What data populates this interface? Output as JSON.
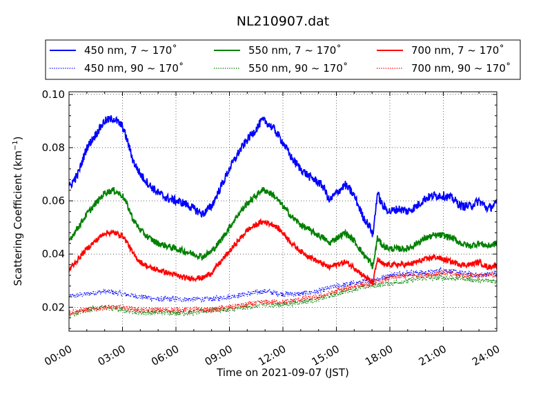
{
  "chart_data": {
    "type": "line",
    "title": "NL210907.dat",
    "xlabel": "Time on 2021-09-07 (JST)",
    "ylabel": "Scattering Coefficient (km",
    "ylabel_sup": "−1",
    "ylabel_close": ")",
    "xlim": [
      0,
      24
    ],
    "ylim": [
      0.011,
      0.101
    ],
    "x_ticks": [
      0,
      3,
      6,
      9,
      12,
      15,
      18,
      21,
      24
    ],
    "x_tick_labels": [
      "00:00",
      "03:00",
      "06:00",
      "09:00",
      "12:00",
      "15:00",
      "18:00",
      "21:00",
      "24:00"
    ],
    "y_ticks": [
      0.02,
      0.04,
      0.06,
      0.08,
      0.1
    ],
    "y_tick_labels": [
      "0.02",
      "0.04",
      "0.06",
      "0.08",
      "0.10"
    ],
    "grid": true,
    "legend_position": "top, above plot, 3 columns",
    "series": [
      {
        "name": "450 nm, 7 ~ 170˚",
        "color": "#0000ff",
        "style": "solid",
        "noise": 0.0016,
        "x": [
          0,
          0.5,
          1,
          1.5,
          2,
          2.5,
          3,
          3.3,
          3.6,
          4,
          4.5,
          5,
          5.5,
          6,
          6.5,
          7,
          7.5,
          8,
          8.5,
          9,
          9.5,
          10,
          10.5,
          10.8,
          11,
          11.5,
          12,
          12.5,
          13,
          13.5,
          14,
          14.3,
          14.6,
          15,
          15.5,
          16,
          16.5,
          16.9,
          17.05,
          17.3,
          17.6,
          18,
          18.5,
          19,
          19.5,
          20,
          20.5,
          21,
          21.5,
          22,
          22.5,
          23,
          23.5,
          24
        ],
        "y": [
          0.065,
          0.07,
          0.08,
          0.085,
          0.09,
          0.091,
          0.088,
          0.082,
          0.075,
          0.07,
          0.066,
          0.063,
          0.061,
          0.06,
          0.059,
          0.057,
          0.055,
          0.058,
          0.065,
          0.072,
          0.078,
          0.083,
          0.087,
          0.09,
          0.09,
          0.087,
          0.082,
          0.076,
          0.072,
          0.069,
          0.067,
          0.065,
          0.06,
          0.063,
          0.066,
          0.062,
          0.054,
          0.05,
          0.047,
          0.063,
          0.058,
          0.056,
          0.057,
          0.056,
          0.058,
          0.061,
          0.062,
          0.062,
          0.061,
          0.058,
          0.058,
          0.06,
          0.057,
          0.059
        ]
      },
      {
        "name": "450 nm, 90 ~ 170˚",
        "color": "#0000ff",
        "style": "dotted",
        "noise": 0.001,
        "x": [
          0,
          1,
          2,
          3,
          4,
          5,
          6,
          7,
          8,
          9,
          10,
          11,
          12,
          13,
          14,
          15,
          16,
          17,
          18,
          19,
          20,
          21,
          22,
          23,
          24
        ],
        "y": [
          0.024,
          0.025,
          0.026,
          0.025,
          0.024,
          0.023,
          0.023,
          0.023,
          0.023,
          0.024,
          0.025,
          0.026,
          0.025,
          0.025,
          0.026,
          0.028,
          0.029,
          0.03,
          0.032,
          0.033,
          0.033,
          0.034,
          0.033,
          0.032,
          0.033
        ]
      },
      {
        "name": "550 nm, 7 ~ 170˚",
        "color": "#008000",
        "style": "solid",
        "noise": 0.0012,
        "x": [
          0,
          0.5,
          1,
          1.5,
          2,
          2.5,
          3,
          3.3,
          3.6,
          4,
          4.5,
          5,
          5.5,
          6,
          6.5,
          7,
          7.5,
          8,
          8.5,
          9,
          9.5,
          10,
          10.5,
          10.8,
          11,
          11.5,
          12,
          12.5,
          13,
          13.5,
          14,
          14.3,
          14.6,
          15,
          15.5,
          16,
          16.5,
          16.9,
          17.05,
          17.3,
          17.6,
          18,
          18.5,
          19,
          19.5,
          20,
          20.5,
          21,
          21.5,
          22,
          22.5,
          23,
          23.5,
          24
        ],
        "y": [
          0.045,
          0.05,
          0.055,
          0.059,
          0.063,
          0.064,
          0.062,
          0.058,
          0.053,
          0.049,
          0.046,
          0.044,
          0.043,
          0.042,
          0.041,
          0.04,
          0.039,
          0.041,
          0.045,
          0.05,
          0.055,
          0.059,
          0.062,
          0.064,
          0.064,
          0.062,
          0.058,
          0.054,
          0.051,
          0.049,
          0.047,
          0.046,
          0.044,
          0.046,
          0.048,
          0.045,
          0.04,
          0.037,
          0.035,
          0.046,
          0.043,
          0.042,
          0.042,
          0.042,
          0.044,
          0.046,
          0.047,
          0.047,
          0.046,
          0.044,
          0.043,
          0.044,
          0.043,
          0.044
        ]
      },
      {
        "name": "550 nm, 90 ~ 170˚",
        "color": "#008000",
        "style": "dotted",
        "noise": 0.001,
        "x": [
          0,
          1,
          2,
          3,
          4,
          5,
          6,
          7,
          8,
          9,
          10,
          11,
          12,
          13,
          14,
          15,
          16,
          17,
          18,
          19,
          20,
          21,
          22,
          23,
          24
        ],
        "y": [
          0.017,
          0.019,
          0.02,
          0.019,
          0.018,
          0.018,
          0.018,
          0.018,
          0.019,
          0.019,
          0.02,
          0.021,
          0.021,
          0.022,
          0.023,
          0.025,
          0.027,
          0.028,
          0.029,
          0.03,
          0.031,
          0.031,
          0.031,
          0.03,
          0.03
        ]
      },
      {
        "name": "700 nm, 7 ~ 170˚",
        "color": "#ff0000",
        "style": "solid",
        "noise": 0.001,
        "x": [
          0,
          0.5,
          1,
          1.5,
          2,
          2.5,
          3,
          3.3,
          3.6,
          4,
          4.5,
          5,
          5.5,
          6,
          6.5,
          7,
          7.5,
          8,
          8.5,
          9,
          9.5,
          10,
          10.5,
          10.8,
          11,
          11.5,
          12,
          12.5,
          13,
          13.5,
          14,
          14.3,
          14.6,
          15,
          15.5,
          16,
          16.5,
          16.9,
          17.05,
          17.3,
          17.6,
          18,
          18.5,
          19,
          19.5,
          20,
          20.5,
          21,
          21.5,
          22,
          22.5,
          23,
          23.5,
          24
        ],
        "y": [
          0.034,
          0.038,
          0.042,
          0.045,
          0.048,
          0.048,
          0.047,
          0.044,
          0.04,
          0.037,
          0.035,
          0.034,
          0.033,
          0.032,
          0.031,
          0.031,
          0.031,
          0.033,
          0.037,
          0.041,
          0.045,
          0.049,
          0.051,
          0.052,
          0.052,
          0.051,
          0.048,
          0.044,
          0.041,
          0.039,
          0.037,
          0.036,
          0.035,
          0.036,
          0.037,
          0.035,
          0.032,
          0.03,
          0.029,
          0.038,
          0.036,
          0.036,
          0.036,
          0.036,
          0.037,
          0.038,
          0.039,
          0.038,
          0.037,
          0.036,
          0.036,
          0.037,
          0.035,
          0.036
        ]
      },
      {
        "name": "700 nm, 90 ~ 170˚",
        "color": "#ff0000",
        "style": "dotted",
        "noise": 0.001,
        "x": [
          0,
          1,
          2,
          3,
          4,
          5,
          6,
          7,
          8,
          9,
          10,
          11,
          12,
          13,
          14,
          15,
          16,
          17,
          18,
          19,
          20,
          21,
          22,
          23,
          24
        ],
        "y": [
          0.018,
          0.019,
          0.02,
          0.02,
          0.019,
          0.019,
          0.019,
          0.019,
          0.019,
          0.02,
          0.021,
          0.022,
          0.022,
          0.023,
          0.024,
          0.026,
          0.028,
          0.029,
          0.031,
          0.032,
          0.032,
          0.033,
          0.032,
          0.032,
          0.032
        ]
      }
    ]
  }
}
